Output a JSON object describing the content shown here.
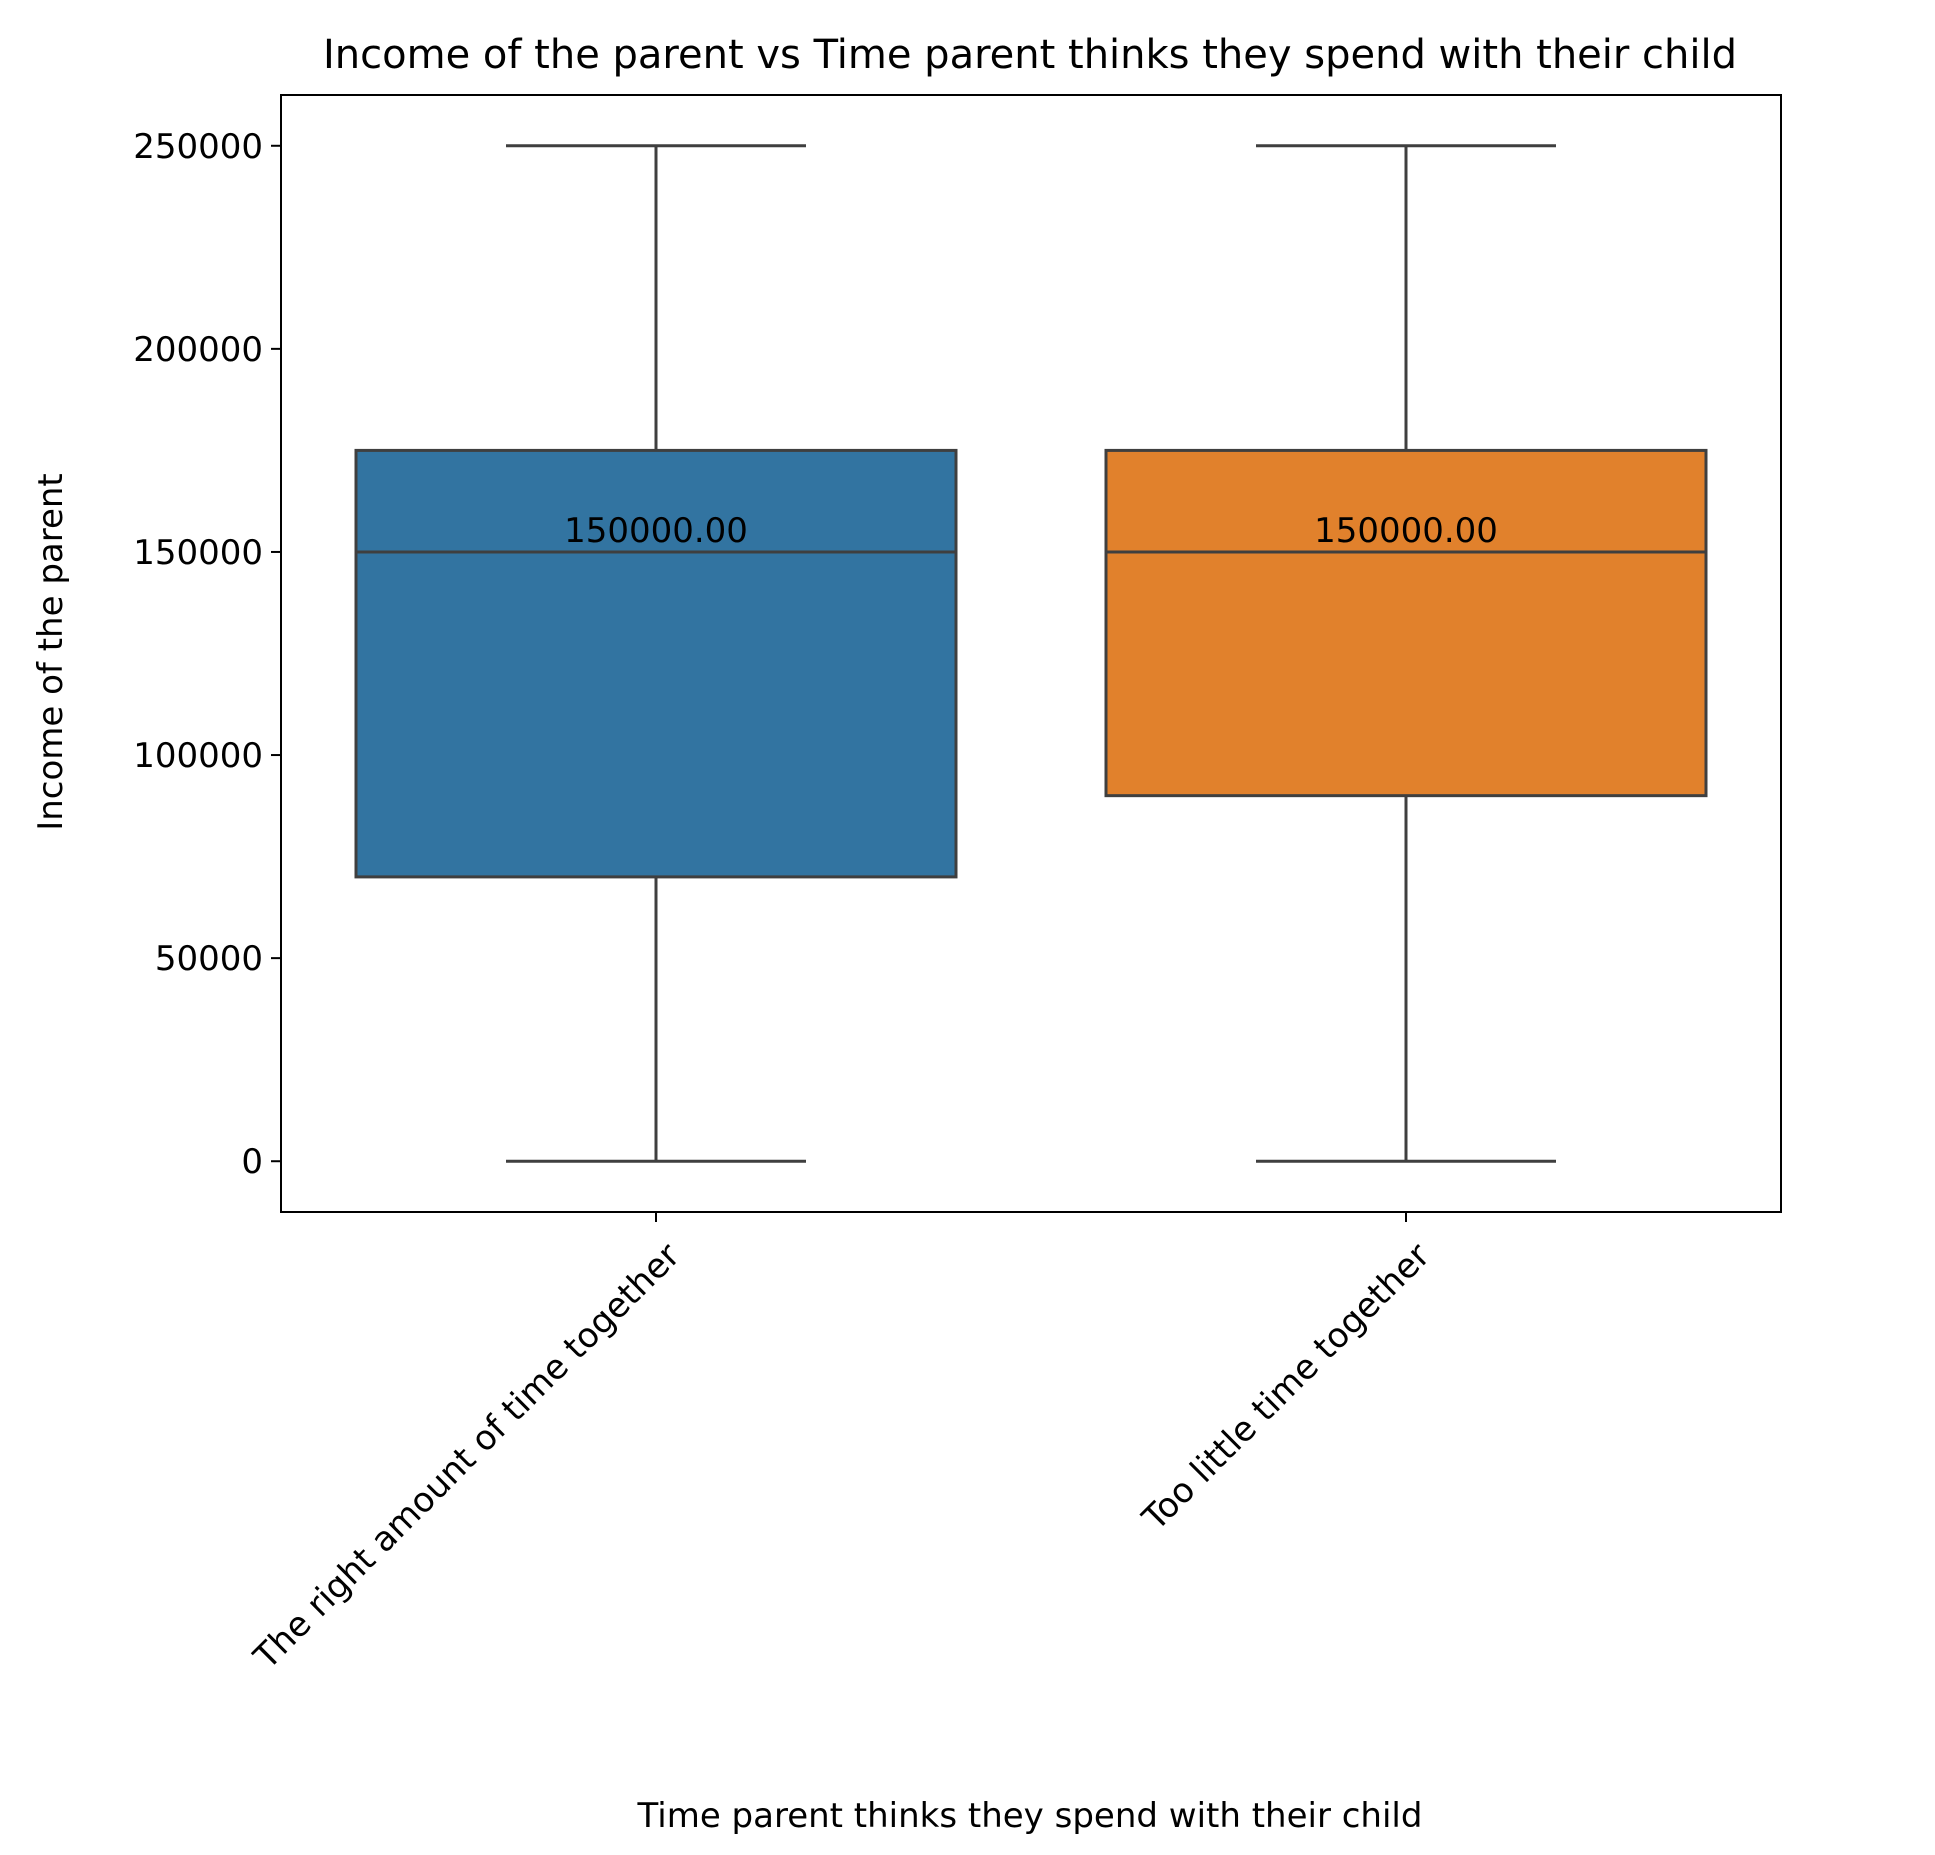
{
  "chart_data": {
    "type": "box",
    "title": "Income of the parent vs Time parent thinks they spend with their child",
    "xlabel": "Time parent thinks they spend with their child",
    "ylabel": "Income of the parent",
    "ylim": [
      -12500,
      262500
    ],
    "yticks": [
      0,
      50000,
      100000,
      150000,
      200000,
      250000
    ],
    "ytick_labels": [
      "0",
      "50000",
      "100000",
      "150000",
      "200000",
      "250000"
    ],
    "grid": false,
    "categories": [
      "The right amount of time together",
      "Too little time together"
    ],
    "boxes": [
      {
        "category": "The right amount of time together",
        "whisker_low": 0,
        "q1": 70000,
        "median": 150000,
        "q3": 175000,
        "whisker_high": 250000,
        "median_label": "150000.00",
        "color": "#3274a1"
      },
      {
        "category": "Too little time together",
        "whisker_low": 0,
        "q1": 90000,
        "median": 150000,
        "q3": 175000,
        "whisker_high": 250000,
        "median_label": "150000.00",
        "color": "#e1812c"
      }
    ],
    "line_color": "#3f3f3f"
  }
}
